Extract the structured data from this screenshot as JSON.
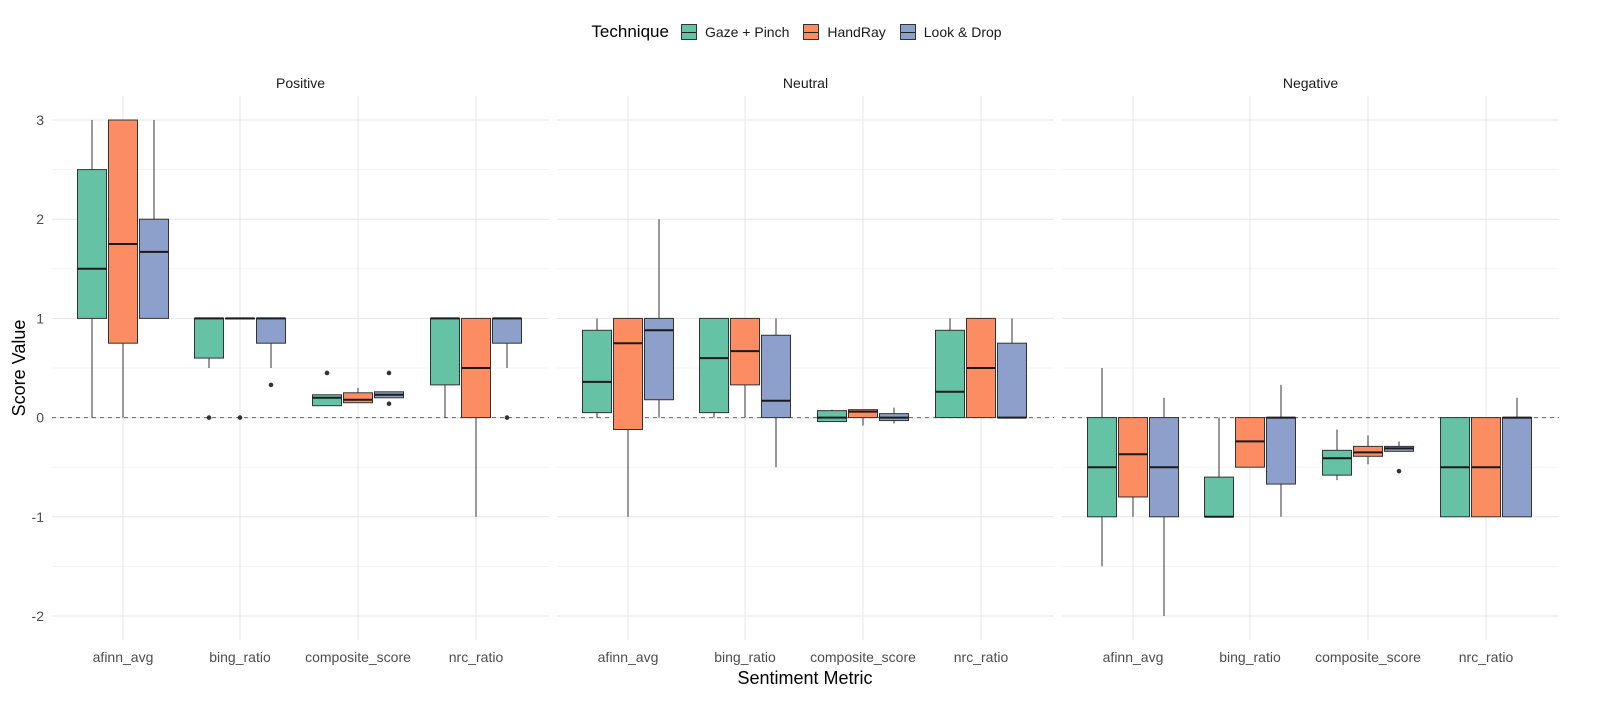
{
  "legend": {
    "title": "Technique",
    "items": [
      {
        "label": "Gaze + Pinch",
        "color": "#66C2A5"
      },
      {
        "label": "HandRay",
        "color": "#FC8D62"
      },
      {
        "label": "Look & Drop",
        "color": "#8DA0CB"
      }
    ]
  },
  "chart_data": {
    "type": "boxplot",
    "xlabel": "Sentiment Metric",
    "ylabel": "Score Value",
    "ylim": [
      -2.2,
      3.25
    ],
    "yticks": [
      -2,
      -1,
      0,
      1,
      2,
      3
    ],
    "reference_line": 0,
    "grid": true,
    "legend_position": "top",
    "categories": [
      "afinn_avg",
      "bing_ratio",
      "composite_score",
      "nrc_ratio"
    ],
    "series_names": [
      "Gaze + Pinch",
      "HandRay",
      "Look & Drop"
    ],
    "series_colors": [
      "#66C2A5",
      "#FC8D62",
      "#8DA0CB"
    ],
    "panels": [
      {
        "title": "Positive",
        "groups": [
          {
            "category": "afinn_avg",
            "boxes": [
              {
                "q1": 1.0,
                "median": 1.5,
                "q3": 2.5,
                "lower": 0.0,
                "upper": 3.0,
                "outliers": []
              },
              {
                "q1": 0.75,
                "median": 1.75,
                "q3": 3.0,
                "lower": 0.0,
                "upper": 3.0,
                "outliers": []
              },
              {
                "q1": 1.0,
                "median": 1.67,
                "q3": 2.0,
                "lower": 1.0,
                "upper": 3.0,
                "outliers": []
              }
            ]
          },
          {
            "category": "bing_ratio",
            "boxes": [
              {
                "q1": 0.6,
                "median": 1.0,
                "q3": 1.0,
                "lower": 0.5,
                "upper": 1.0,
                "outliers": [
                  0.0
                ]
              },
              {
                "q1": 1.0,
                "median": 1.0,
                "q3": 1.0,
                "lower": 1.0,
                "upper": 1.0,
                "outliers": [
                  0.0
                ]
              },
              {
                "q1": 0.75,
                "median": 1.0,
                "q3": 1.0,
                "lower": 0.5,
                "upper": 1.0,
                "outliers": [
                  0.33
                ]
              }
            ]
          },
          {
            "category": "composite_score",
            "boxes": [
              {
                "q1": 0.12,
                "median": 0.2,
                "q3": 0.23,
                "lower": 0.12,
                "upper": 0.23,
                "outliers": [
                  0.45
                ]
              },
              {
                "q1": 0.15,
                "median": 0.18,
                "q3": 0.25,
                "lower": 0.15,
                "upper": 0.3,
                "outliers": []
              },
              {
                "q1": 0.2,
                "median": 0.23,
                "q3": 0.26,
                "lower": 0.2,
                "upper": 0.26,
                "outliers": [
                  0.45,
                  0.14
                ]
              }
            ]
          },
          {
            "category": "nrc_ratio",
            "boxes": [
              {
                "q1": 0.33,
                "median": 1.0,
                "q3": 1.0,
                "lower": 0.0,
                "upper": 1.0,
                "outliers": []
              },
              {
                "q1": 0.0,
                "median": 0.5,
                "q3": 1.0,
                "lower": -1.0,
                "upper": 1.0,
                "outliers": []
              },
              {
                "q1": 0.75,
                "median": 1.0,
                "q3": 1.0,
                "lower": 0.5,
                "upper": 1.0,
                "outliers": [
                  0.0
                ]
              }
            ]
          }
        ]
      },
      {
        "title": "Neutral",
        "groups": [
          {
            "category": "afinn_avg",
            "boxes": [
              {
                "q1": 0.05,
                "median": 0.36,
                "q3": 0.88,
                "lower": 0.0,
                "upper": 1.0,
                "outliers": []
              },
              {
                "q1": -0.12,
                "median": 0.75,
                "q3": 1.0,
                "lower": -1.0,
                "upper": 1.0,
                "outliers": []
              },
              {
                "q1": 0.18,
                "median": 0.88,
                "q3": 1.0,
                "lower": 0.0,
                "upper": 2.0,
                "outliers": []
              }
            ]
          },
          {
            "category": "bing_ratio",
            "boxes": [
              {
                "q1": 0.05,
                "median": 0.6,
                "q3": 1.0,
                "lower": 0.0,
                "upper": 1.0,
                "outliers": []
              },
              {
                "q1": 0.33,
                "median": 0.67,
                "q3": 1.0,
                "lower": 0.0,
                "upper": 1.0,
                "outliers": []
              },
              {
                "q1": 0.0,
                "median": 0.17,
                "q3": 0.83,
                "lower": -0.5,
                "upper": 1.0,
                "outliers": []
              }
            ]
          },
          {
            "category": "composite_score",
            "boxes": [
              {
                "q1": -0.04,
                "median": 0.0,
                "q3": 0.07,
                "lower": -0.04,
                "upper": 0.08,
                "outliers": []
              },
              {
                "q1": 0.0,
                "median": 0.06,
                "q3": 0.08,
                "lower": -0.08,
                "upper": 0.08,
                "outliers": []
              },
              {
                "q1": -0.03,
                "median": 0.0,
                "q3": 0.04,
                "lower": -0.06,
                "upper": 0.1,
                "outliers": []
              }
            ]
          },
          {
            "category": "nrc_ratio",
            "boxes": [
              {
                "q1": 0.0,
                "median": 0.26,
                "q3": 0.88,
                "lower": 0.0,
                "upper": 1.0,
                "outliers": []
              },
              {
                "q1": 0.0,
                "median": 0.5,
                "q3": 1.0,
                "lower": 0.0,
                "upper": 1.0,
                "outliers": []
              },
              {
                "q1": 0.0,
                "median": 0.0,
                "q3": 0.75,
                "lower": 0.0,
                "upper": 1.0,
                "outliers": []
              }
            ]
          }
        ]
      },
      {
        "title": "Negative",
        "groups": [
          {
            "category": "afinn_avg",
            "boxes": [
              {
                "q1": -1.0,
                "median": -0.5,
                "q3": 0.0,
                "lower": -1.5,
                "upper": 0.5,
                "outliers": []
              },
              {
                "q1": -0.8,
                "median": -0.37,
                "q3": 0.0,
                "lower": -1.0,
                "upper": 0.0,
                "outliers": []
              },
              {
                "q1": -1.0,
                "median": -0.5,
                "q3": 0.0,
                "lower": -2.0,
                "upper": 0.2,
                "outliers": []
              }
            ]
          },
          {
            "category": "bing_ratio",
            "boxes": [
              {
                "q1": -1.0,
                "median": -1.0,
                "q3": -0.6,
                "lower": -1.0,
                "upper": 0.0,
                "outliers": []
              },
              {
                "q1": -0.5,
                "median": -0.24,
                "q3": 0.0,
                "lower": -0.5,
                "upper": 0.0,
                "outliers": []
              },
              {
                "q1": -0.67,
                "median": 0.0,
                "q3": 0.0,
                "lower": -1.0,
                "upper": 0.33,
                "outliers": []
              }
            ]
          },
          {
            "category": "composite_score",
            "boxes": [
              {
                "q1": -0.58,
                "median": -0.41,
                "q3": -0.33,
                "lower": -0.63,
                "upper": -0.12,
                "outliers": []
              },
              {
                "q1": -0.39,
                "median": -0.35,
                "q3": -0.29,
                "lower": -0.47,
                "upper": -0.18,
                "outliers": []
              },
              {
                "q1": -0.34,
                "median": -0.31,
                "q3": -0.29,
                "lower": -0.34,
                "upper": -0.24,
                "outliers": [
                  -0.54
                ]
              }
            ]
          },
          {
            "category": "nrc_ratio",
            "boxes": [
              {
                "q1": -1.0,
                "median": -0.5,
                "q3": 0.0,
                "lower": -1.0,
                "upper": 0.0,
                "outliers": []
              },
              {
                "q1": -1.0,
                "median": -0.5,
                "q3": 0.0,
                "lower": -1.0,
                "upper": 0.0,
                "outliers": []
              },
              {
                "q1": -1.0,
                "median": 0.0,
                "q3": 0.0,
                "lower": -1.0,
                "upper": 0.2,
                "outliers": []
              }
            ]
          }
        ]
      }
    ]
  }
}
